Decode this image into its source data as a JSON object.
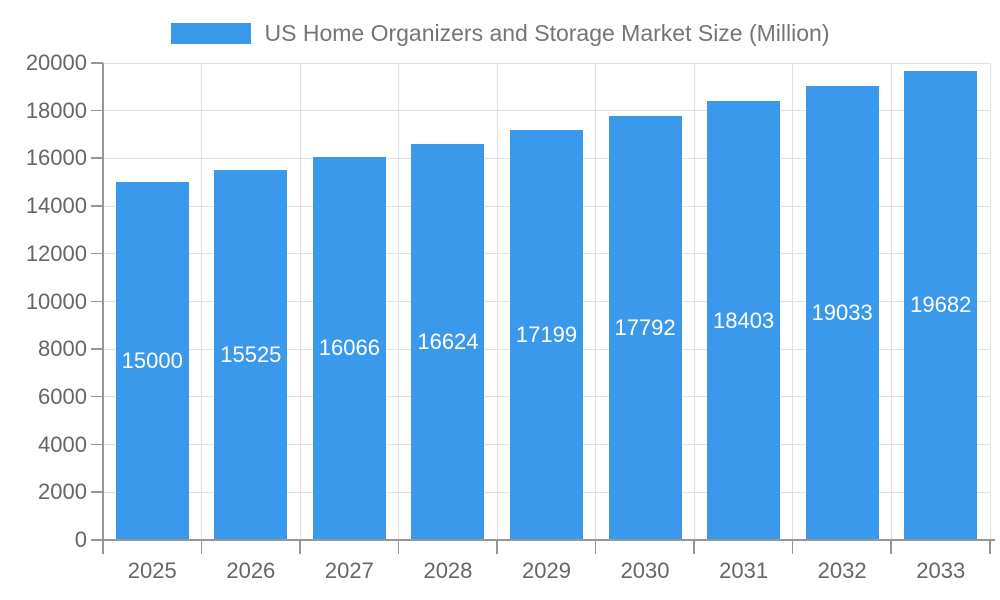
{
  "legend": {
    "label": "US Home Organizers and Storage Market Size (Million)"
  },
  "chart_data": {
    "type": "bar",
    "title": "US Home Organizers and Storage Market Size (Million)",
    "series_name": "US Home Organizers and Storage Market Size (Million)",
    "categories": [
      "2025",
      "2026",
      "2027",
      "2028",
      "2029",
      "2030",
      "2031",
      "2032",
      "2033"
    ],
    "values": [
      15000,
      15525,
      16066,
      16624,
      17199,
      17792,
      18403,
      19033,
      19682
    ],
    "xlabel": "",
    "ylabel": "",
    "ylim": [
      0,
      20000
    ],
    "ytick_step": 2000,
    "grid": true,
    "legend_position": "top",
    "bar_label_position": "inside-middle",
    "colors": {
      "bar": "#3B99EC",
      "grid": "#E0E0E0",
      "axis": "#969696",
      "tick_label": "#666666",
      "title": "#757575",
      "bar_label": "#FFFFFF",
      "background": "#FFFFFF"
    }
  }
}
